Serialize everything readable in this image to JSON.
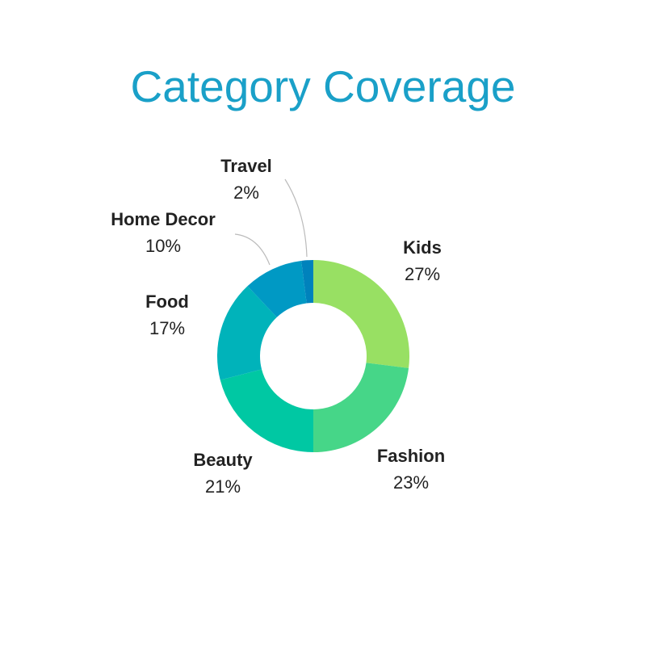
{
  "chart_data": {
    "type": "pie",
    "variant": "donut",
    "title": "Category Coverage",
    "slices": [
      {
        "label": "Kids",
        "value": 27,
        "value_label": "27%",
        "color": "#98E063"
      },
      {
        "label": "Fashion",
        "value": 23,
        "value_label": "23%",
        "color": "#46D688"
      },
      {
        "label": "Beauty",
        "value": 21,
        "value_label": "21%",
        "color": "#00C8A3"
      },
      {
        "label": "Food",
        "value": 17,
        "value_label": "17%",
        "color": "#00B3BA"
      },
      {
        "label": "Home Decor",
        "value": 10,
        "value_label": "10%",
        "color": "#0099C4"
      },
      {
        "label": "Travel",
        "value": 2,
        "value_label": "2%",
        "color": "#0082BC"
      }
    ],
    "title_color": "#1AA0C8",
    "legend": "none"
  }
}
